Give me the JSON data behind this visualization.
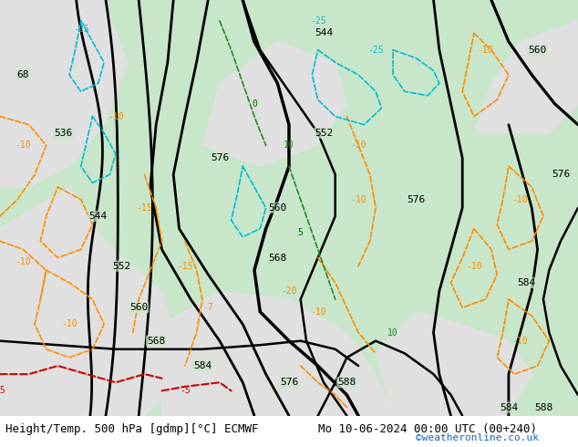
{
  "title_left": "Height/Temp. 500 hPa [gdmp][°C] ECMWF",
  "title_right": "Mo 10-06-2024 00:00 UTC (00+240)",
  "watermark": "©weatheronline.co.uk",
  "bg_color": "#c8e6c9",
  "land_color": "#c8e6c9",
  "sea_color": "#e8e8e8",
  "figsize": [
    6.34,
    4.9
  ],
  "dpi": 100,
  "title_fontsize": 9,
  "watermark_color": "#1565c0",
  "bottom_bar_color": "#ffffff",
  "geopotential_color": "#000000",
  "temp_negative_color": "#ff8c00",
  "temp_positive_color": "#006400",
  "temp_special_color": "#00bcd4",
  "temp_red_color": "#cc0000"
}
